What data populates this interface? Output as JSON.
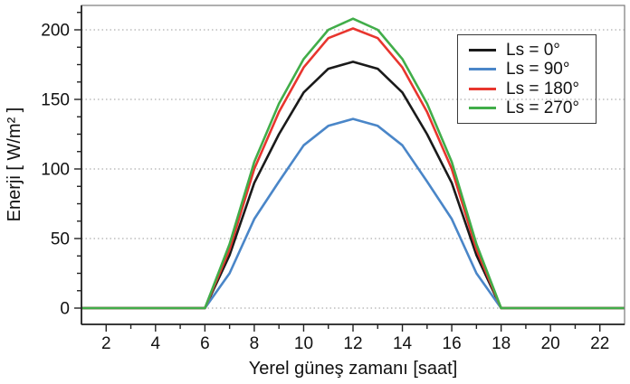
{
  "chart_data": {
    "type": "line",
    "title": "",
    "xlabel": "Yerel güneş zamanı [saat]",
    "ylabel": "Enerji [ W/m² ]",
    "x": [
      1,
      2,
      3,
      4,
      5,
      6,
      7,
      8,
      9,
      10,
      11,
      12,
      13,
      14,
      15,
      16,
      17,
      18,
      19,
      20,
      21,
      22,
      23
    ],
    "series": [
      {
        "name": "Ls = 0°",
        "color": "#1a1a1a",
        "values": [
          0,
          0,
          0,
          0,
          0,
          0,
          38,
          90,
          125,
          155,
          172,
          177,
          172,
          155,
          125,
          90,
          38,
          0,
          0,
          0,
          0,
          0,
          0
        ]
      },
      {
        "name": "Ls = 90°",
        "color": "#4a86c8",
        "values": [
          0,
          0,
          0,
          0,
          0,
          0,
          25,
          64,
          91,
          117,
          131,
          136,
          131,
          117,
          91,
          64,
          25,
          0,
          0,
          0,
          0,
          0,
          0
        ]
      },
      {
        "name": "Ls = 180°",
        "color": "#e8352e",
        "values": [
          0,
          0,
          0,
          0,
          0,
          0,
          42,
          100,
          141,
          173,
          194,
          201,
          194,
          173,
          141,
          100,
          42,
          0,
          0,
          0,
          0,
          0,
          0
        ]
      },
      {
        "name": "Ls = 270°",
        "color": "#41ad49",
        "values": [
          0,
          0,
          0,
          0,
          0,
          0,
          46,
          105,
          147,
          179,
          200,
          208,
          200,
          179,
          147,
          105,
          46,
          0,
          0,
          0,
          0,
          0,
          0
        ]
      }
    ],
    "xlim": [
      1,
      23
    ],
    "ylim": [
      -12,
      218
    ],
    "xticks_major": [
      2,
      4,
      6,
      8,
      10,
      12,
      14,
      16,
      18,
      20,
      22
    ],
    "xticks_minor": [
      3,
      5,
      7,
      9,
      11,
      13,
      15,
      17,
      19,
      21
    ],
    "yticks_major": [
      0,
      50,
      100,
      150,
      200
    ],
    "yticks_minor": [
      12.5,
      25,
      37.5,
      62.5,
      75,
      87.5,
      112.5,
      125,
      137.5,
      162.5,
      175,
      187.5,
      212.5
    ],
    "grid": "horizontal-dotted",
    "legend_position": "upper-right"
  }
}
